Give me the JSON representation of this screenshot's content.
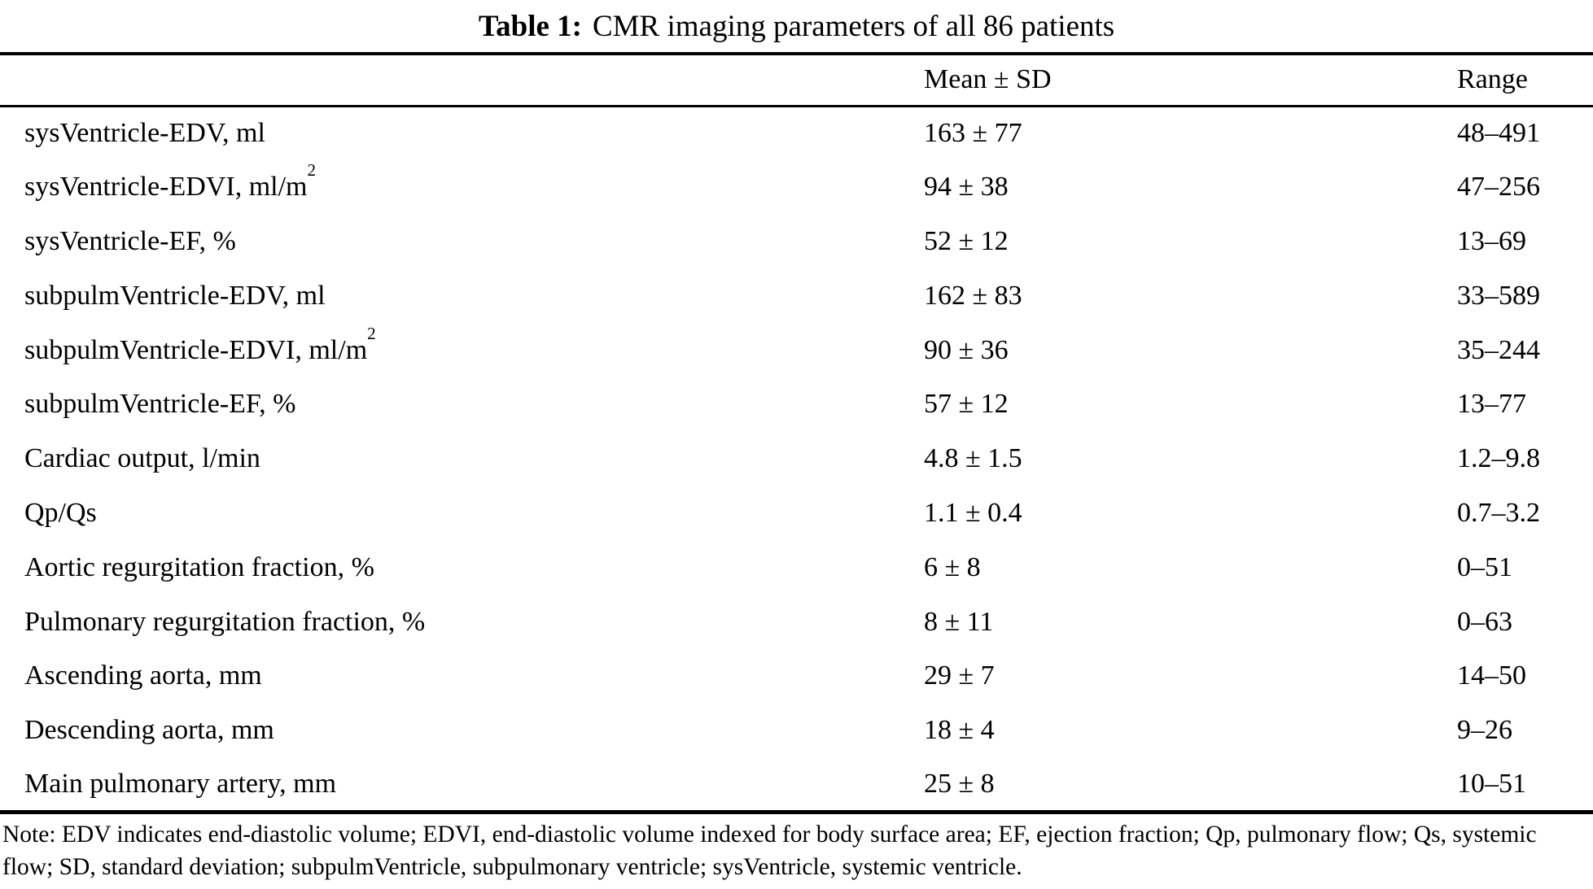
{
  "caption": {
    "label": "Table 1:",
    "text": "CMR imaging parameters of all 86 patients"
  },
  "columns": {
    "parameter": "",
    "mean_sd": "Mean ± SD",
    "range": "Range"
  },
  "rows": [
    {
      "param": "sysVentricle-EDV, ml",
      "mean": "163 ± 77",
      "range": "48–491"
    },
    {
      "param": "sysVentricle-EDVI, ml/m",
      "param_sup": "2",
      "mean": "94 ± 38",
      "range": "47–256"
    },
    {
      "param": "sysVentricle-EF, %",
      "mean": "52 ± 12",
      "range": "13–69"
    },
    {
      "param": "subpulmVentricle-EDV, ml",
      "mean": "162 ± 83",
      "range": "33–589"
    },
    {
      "param": "subpulmVentricle-EDVI, ml/m",
      "param_sup": "2",
      "mean": "90 ± 36",
      "range": "35–244"
    },
    {
      "param": "subpulmVentricle-EF, %",
      "mean": "57 ± 12",
      "range": "13–77"
    },
    {
      "param": "Cardiac output, l/min",
      "mean": "4.8 ± 1.5",
      "range": "1.2–9.8"
    },
    {
      "param": "Qp/Qs",
      "mean": "1.1 ± 0.4",
      "range": "0.7–3.2"
    },
    {
      "param": "Aortic regurgitation fraction, %",
      "mean": "6 ± 8",
      "range": "0–51"
    },
    {
      "param": "Pulmonary regurgitation fraction, %",
      "mean": "8 ± 11",
      "range": "0–63"
    },
    {
      "param": "Ascending aorta, mm",
      "mean": "29 ± 7",
      "range": "14–50"
    },
    {
      "param": "Descending aorta, mm",
      "mean": "18 ± 4",
      "range": "9–26"
    },
    {
      "param": "Main pulmonary artery, mm",
      "mean": "25 ± 8",
      "range": "10–51"
    }
  ],
  "footnote": "Note: EDV indicates end-diastolic volume; EDVI, end-diastolic volume indexed for body surface area; EF, ejection fraction; Qp, pulmonary flow; Qs, systemic flow; SD, standard deviation; subpulmVentricle, subpulmonary ventricle; sysVentricle, systemic ventricle."
}
